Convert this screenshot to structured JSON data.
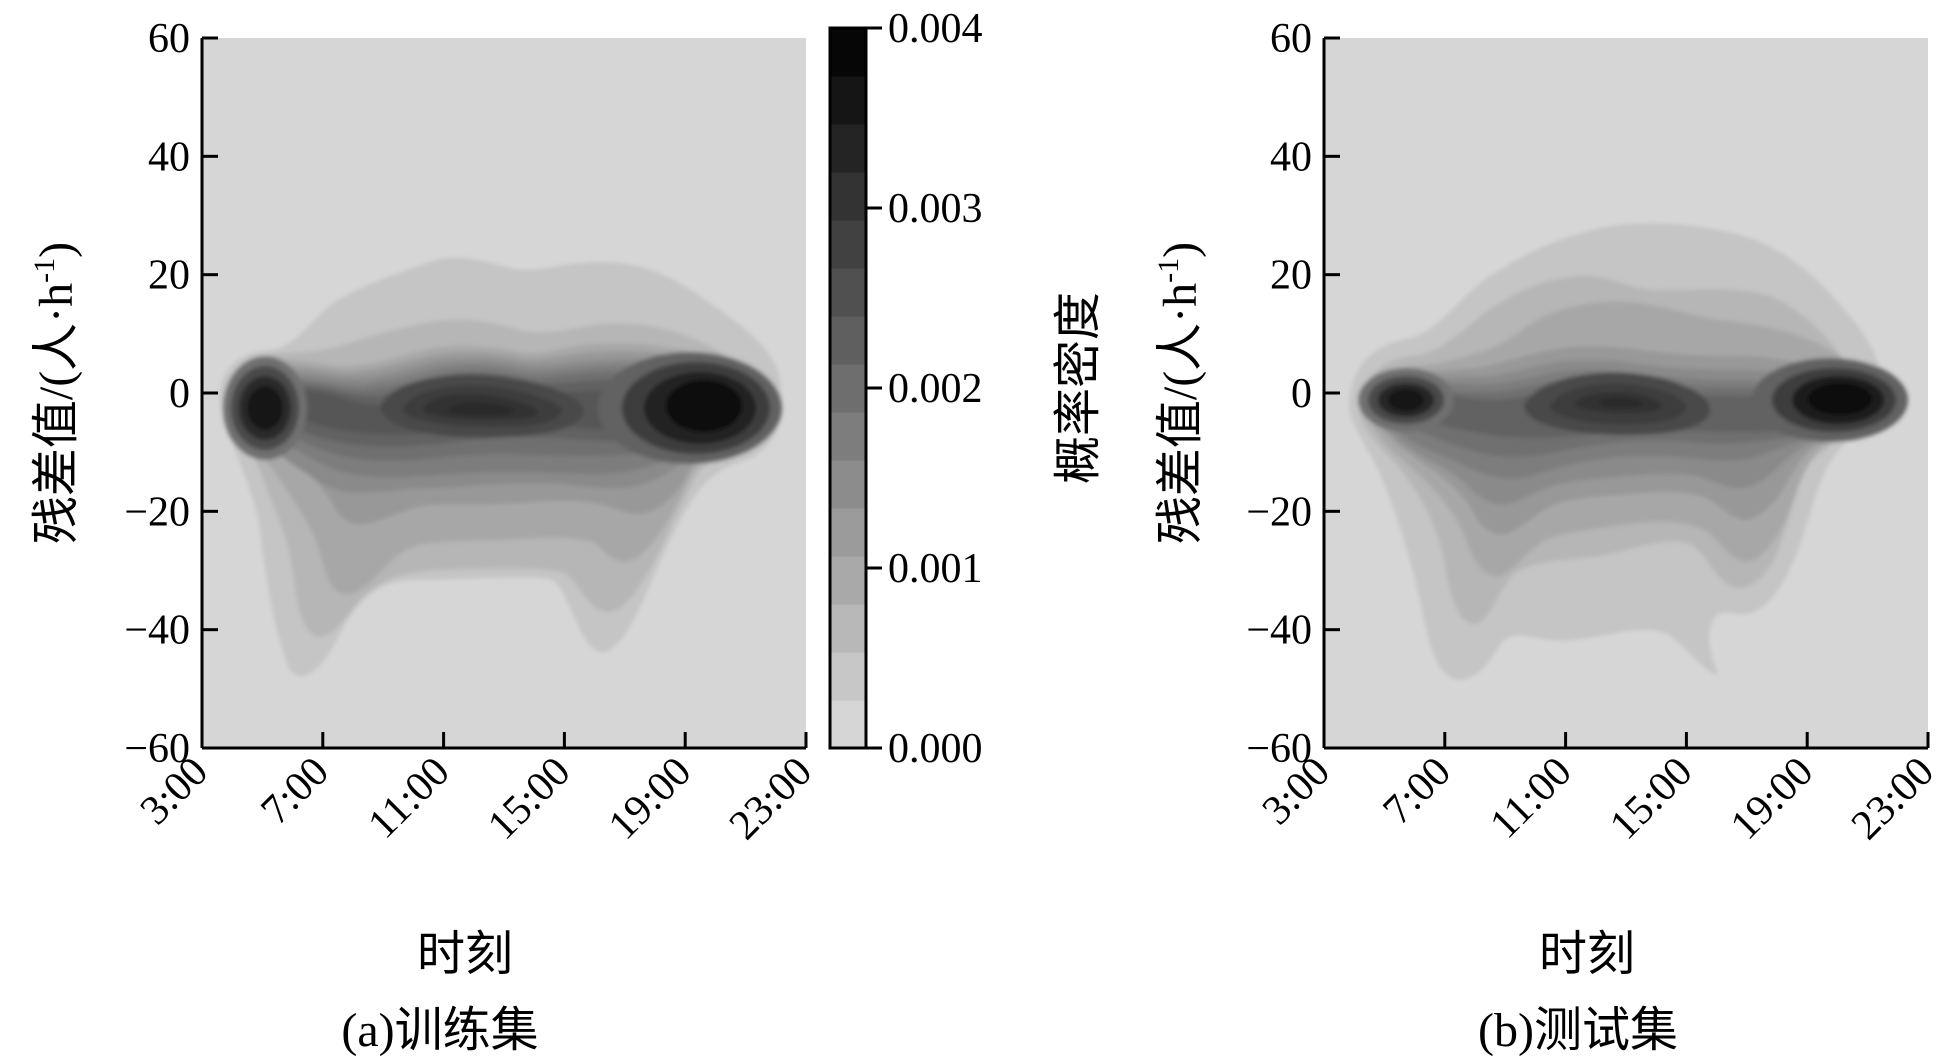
{
  "chart_data": [
    {
      "type": "heatmap",
      "subtype": "filled-contour",
      "caption": "(a)训练集",
      "xlabel": "时刻",
      "ylabel": "残差值/(人·h",
      "ylabel_sup": "-1",
      "ylabel_tail": ")",
      "x_ticks": [
        "3:00",
        "7:00",
        "11:00",
        "15:00",
        "19:00",
        "23:00"
      ],
      "y_ticks": [
        "60",
        "40",
        "20",
        "0",
        "−20",
        "−40",
        "−60"
      ],
      "xlim": [
        "3:00",
        "23:00"
      ],
      "ylim": [
        -60,
        60
      ],
      "density_peaks": [
        {
          "time": "5:00",
          "residual": -2,
          "density": 0.0037
        },
        {
          "time": "12:00",
          "residual": -4,
          "density": 0.0024
        },
        {
          "time": "20:00",
          "residual": -2,
          "density": 0.0039
        }
      ],
      "outer_contour_extent": {
        "time": [
          "3:00",
          "22:30"
        ],
        "residual": [
          -48,
          22
        ]
      }
    },
    {
      "type": "heatmap",
      "subtype": "filled-contour",
      "caption": "(b)测试集",
      "xlabel": "时刻",
      "ylabel": "残差值/(人·h",
      "ylabel_sup": "-1",
      "ylabel_tail": ")",
      "x_ticks": [
        "3:00",
        "7:00",
        "11:00",
        "15:00",
        "19:00",
        "23:00"
      ],
      "y_ticks": [
        "60",
        "40",
        "20",
        "0",
        "−20",
        "−40",
        "−60"
      ],
      "xlim": [
        "3:00",
        "23:00"
      ],
      "ylim": [
        -60,
        60
      ],
      "density_peaks": [
        {
          "time": "6:00",
          "residual": 0,
          "density": 0.0038
        },
        {
          "time": "12:30",
          "residual": -2,
          "density": 0.0023
        },
        {
          "time": "19:30",
          "residual": -1,
          "density": 0.004
        }
      ],
      "outer_contour_extent": {
        "time": [
          "3:00",
          "22:30"
        ],
        "residual": [
          -48,
          28
        ]
      }
    }
  ],
  "colorbar": {
    "label": "概率密度",
    "ticks": [
      "0.004",
      "0.003",
      "0.002",
      "0.001",
      "0.000"
    ],
    "range": [
      0,
      0.004
    ],
    "levels": 15,
    "colormap": {
      "low": "#d6d6d6",
      "high": "#060606"
    }
  }
}
